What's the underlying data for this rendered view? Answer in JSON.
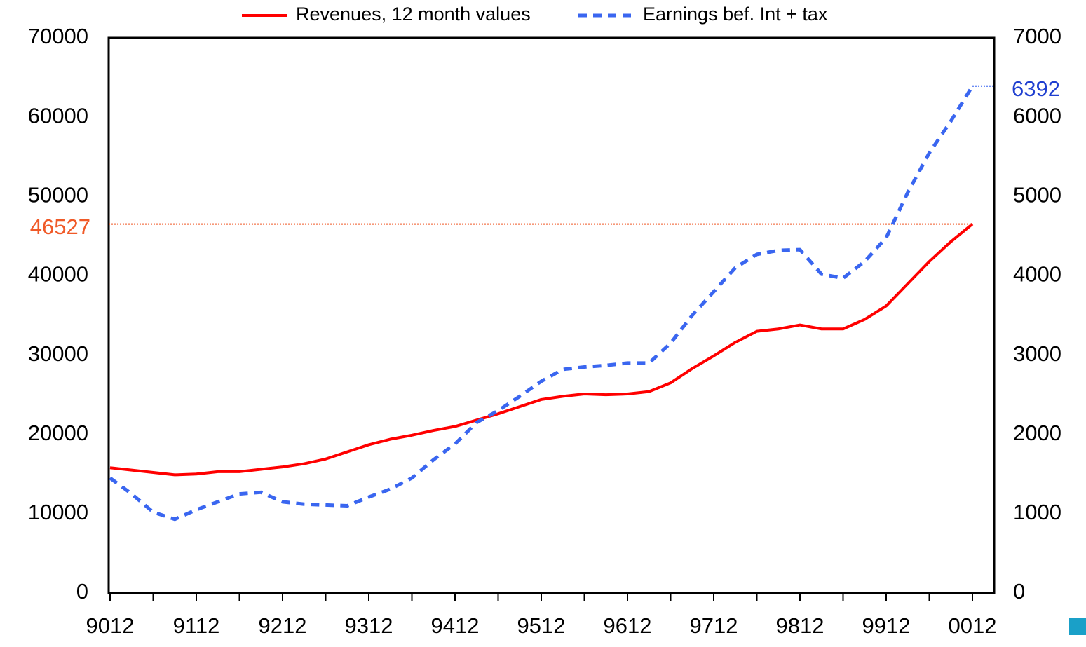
{
  "chart_data": {
    "type": "line",
    "categories": [
      "9012",
      null,
      null,
      null,
      "9112",
      null,
      null,
      null,
      "9212",
      null,
      null,
      null,
      "9312",
      null,
      null,
      null,
      "9412",
      null,
      null,
      null,
      "9512",
      null,
      null,
      null,
      "9612",
      null,
      null,
      null,
      "9712",
      null,
      null,
      null,
      "9812",
      null,
      null,
      null,
      "9912",
      null,
      null,
      null,
      "0012"
    ],
    "series": [
      {
        "name": "Revenues, 12 month values",
        "color": "#ff0000",
        "label_color": "#f05a28",
        "axis": "y",
        "values": [
          15800,
          15500,
          15200,
          14900,
          15000,
          15300,
          15300,
          15600,
          15900,
          16300,
          16900,
          17800,
          18700,
          19400,
          19900,
          20500,
          21000,
          21800,
          22600,
          23500,
          24400,
          24800,
          25100,
          25000,
          25100,
          25400,
          26500,
          28300,
          29900,
          31600,
          33000,
          33300,
          33800,
          33300,
          33300,
          34500,
          36200,
          39000,
          41800,
          44300,
          46527
        ]
      },
      {
        "name": "Earnings bef. Int + tax",
        "color": "#3a66f0",
        "label_color": "#1f3fd0",
        "axis": "y2",
        "dashed": true,
        "values": [
          1450,
          1250,
          1020,
          930,
          1050,
          1150,
          1250,
          1270,
          1150,
          1120,
          1110,
          1100,
          1210,
          1310,
          1450,
          1680,
          1880,
          2150,
          2300,
          2480,
          2670,
          2820,
          2850,
          2870,
          2900,
          2900,
          3150,
          3500,
          3800,
          4100,
          4270,
          4320,
          4330,
          4020,
          3970,
          4180,
          4480,
          5050,
          5550,
          5950,
          6392
        ]
      }
    ],
    "ylim": [
      0,
      70000
    ],
    "yticks": [
      0,
      10000,
      20000,
      30000,
      40000,
      50000,
      60000,
      70000
    ],
    "y2lim": [
      0,
      7000
    ],
    "y2ticks": [
      0,
      1000,
      2000,
      3000,
      4000,
      5000,
      6000,
      7000
    ],
    "legend": "top",
    "grid": false
  }
}
